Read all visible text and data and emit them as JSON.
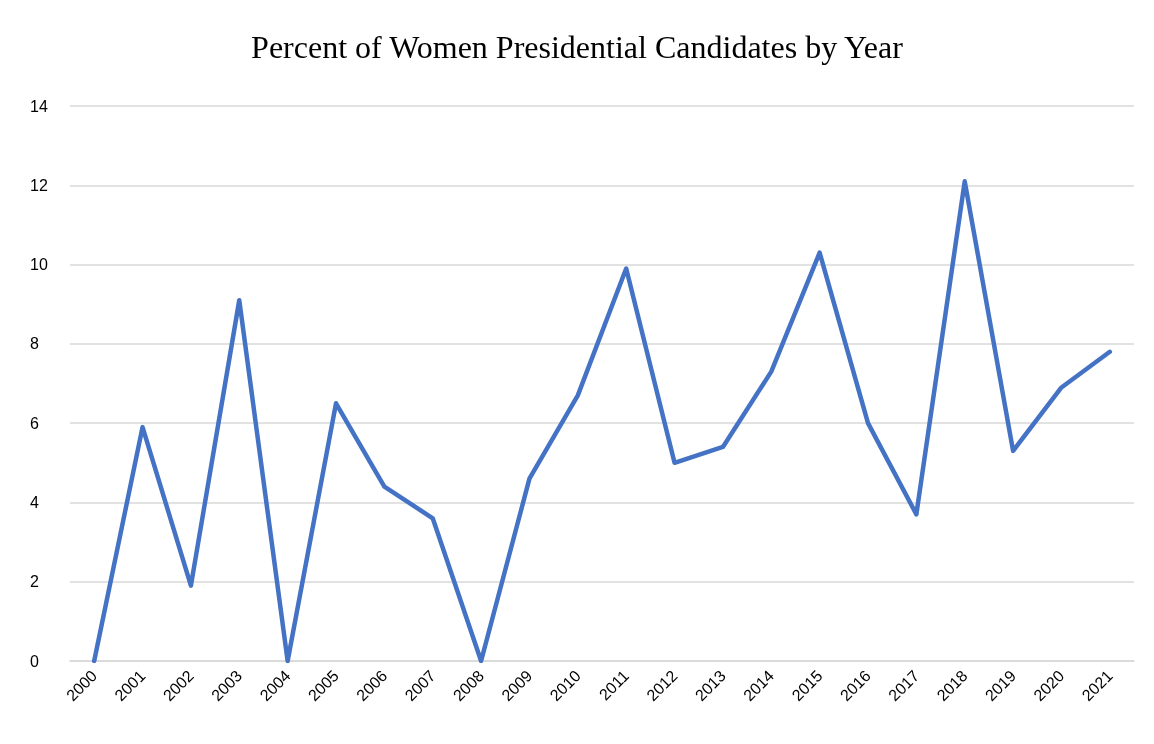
{
  "chart_data": {
    "type": "line",
    "title": "Percent of Women Presidential Candidates by Year",
    "categories": [
      "2000",
      "2001",
      "2002",
      "2003",
      "2004",
      "2005",
      "2006",
      "2007",
      "2008",
      "2009",
      "2010",
      "2011",
      "2012",
      "2013",
      "2014",
      "2015",
      "2016",
      "2017",
      "2018",
      "2019",
      "2020",
      "2021"
    ],
    "series": [
      {
        "color": "#4472c4",
        "values": [
          0,
          5.9,
          1.9,
          9.1,
          0,
          6.5,
          4.4,
          3.6,
          0,
          4.6,
          6.7,
          9.9,
          5.0,
          5.4,
          7.3,
          10.3,
          6.0,
          3.7,
          12.1,
          5.3,
          6.9,
          7.8
        ]
      }
    ],
    "ylim": [
      0,
      14
    ],
    "yticks": [
      0,
      2,
      4,
      6,
      8,
      10,
      12,
      14
    ],
    "grid": "y",
    "marker": "none",
    "line_style": "solid"
  }
}
